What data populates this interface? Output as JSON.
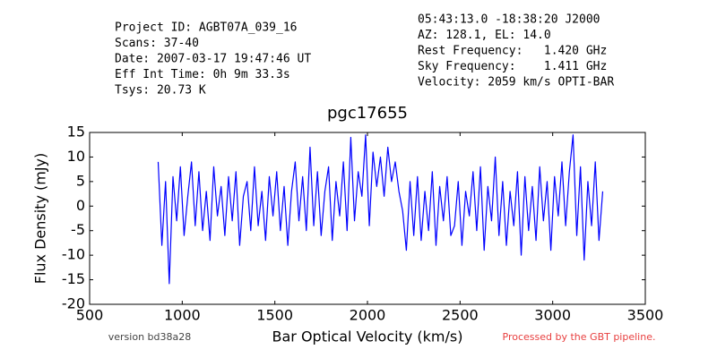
{
  "chart_data": {
    "type": "line",
    "title": "pgc17655",
    "x_label": "Bar Optical Velocity (km/s)",
    "y_label": "Flux Density (mJy)",
    "header_left": [
      "Project ID: AGBT07A_039_16",
      "Scans: 37-40",
      "Date: 2007-03-17 19:47:46 UT",
      "Eff Int Time: 0h 9m 33.3s",
      "Tsys: 20.73 K"
    ],
    "header_right": [
      "05:43:13.0 -18:38:20 J2000",
      "AZ: 128.1, EL: 14.0",
      "Rest Frequency:   1.420 GHz",
      "Sky Frequency:    1.411 GHz",
      "Velocity: 2059 km/s OPTI-BAR"
    ],
    "version_note": "version bd38a28",
    "pipeline_note": "Processed by the GBT pipeline.",
    "xlim": [
      500,
      3500
    ],
    "xticks": [
      500,
      1000,
      1500,
      2000,
      2500,
      3000,
      3500
    ],
    "ylim": [
      -20,
      15
    ],
    "yticks": [
      -20,
      -15,
      -10,
      -5,
      0,
      5,
      10,
      15
    ],
    "x": [
      870,
      890,
      910,
      930,
      950,
      970,
      990,
      1010,
      1030,
      1050,
      1070,
      1090,
      1110,
      1130,
      1150,
      1170,
      1190,
      1210,
      1230,
      1250,
      1270,
      1290,
      1310,
      1330,
      1350,
      1370,
      1390,
      1410,
      1430,
      1450,
      1470,
      1490,
      1510,
      1530,
      1550,
      1570,
      1590,
      1610,
      1630,
      1650,
      1670,
      1690,
      1710,
      1730,
      1750,
      1770,
      1790,
      1810,
      1830,
      1850,
      1870,
      1890,
      1910,
      1930,
      1950,
      1970,
      1990,
      2010,
      2030,
      2050,
      2070,
      2090,
      2110,
      2130,
      2150,
      2170,
      2190,
      2210,
      2230,
      2250,
      2270,
      2290,
      2310,
      2330,
      2350,
      2370,
      2390,
      2410,
      2430,
      2450,
      2470,
      2490,
      2510,
      2530,
      2550,
      2570,
      2590,
      2610,
      2630,
      2650,
      2670,
      2690,
      2710,
      2730,
      2750,
      2770,
      2790,
      2810,
      2830,
      2850,
      2870,
      2890,
      2910,
      2930,
      2950,
      2970,
      2990,
      3010,
      3030,
      3050,
      3070,
      3090,
      3110,
      3130,
      3150,
      3170,
      3190,
      3210,
      3230,
      3250,
      3270
    ],
    "series": [
      {
        "name": "spectrum",
        "color": "#0000ff",
        "values": [
          9,
          -8,
          5,
          -15.8,
          6,
          -3,
          8,
          -6,
          2,
          9,
          -4,
          7,
          -5,
          3,
          -7,
          8,
          -2,
          4,
          -6,
          6,
          -3,
          7,
          -8,
          2,
          5,
          -5,
          8,
          -4,
          3,
          -7,
          6,
          -2,
          7,
          -5,
          4,
          -8,
          3,
          9,
          -3,
          6,
          -5,
          12,
          -4,
          7,
          -6,
          3,
          8,
          -7,
          5,
          -2,
          9,
          -5,
          14,
          -3,
          7,
          2,
          14.5,
          -4,
          11,
          4,
          10,
          2,
          12,
          5,
          9,
          3,
          -1,
          -9,
          5,
          -6,
          6,
          -7,
          3,
          -5,
          7,
          -8,
          4,
          -3,
          6,
          -6,
          -4,
          5,
          -8,
          3,
          -2,
          7,
          -5,
          8,
          -9,
          4,
          -3,
          10,
          -6,
          5,
          -8,
          3,
          -4,
          7,
          -10,
          6,
          -5,
          4,
          -7,
          8,
          -3,
          5,
          -9,
          6,
          -2,
          9,
          -4,
          7,
          14.5,
          -6,
          8,
          -11,
          5,
          -4,
          9,
          -7,
          3
        ]
      }
    ]
  }
}
